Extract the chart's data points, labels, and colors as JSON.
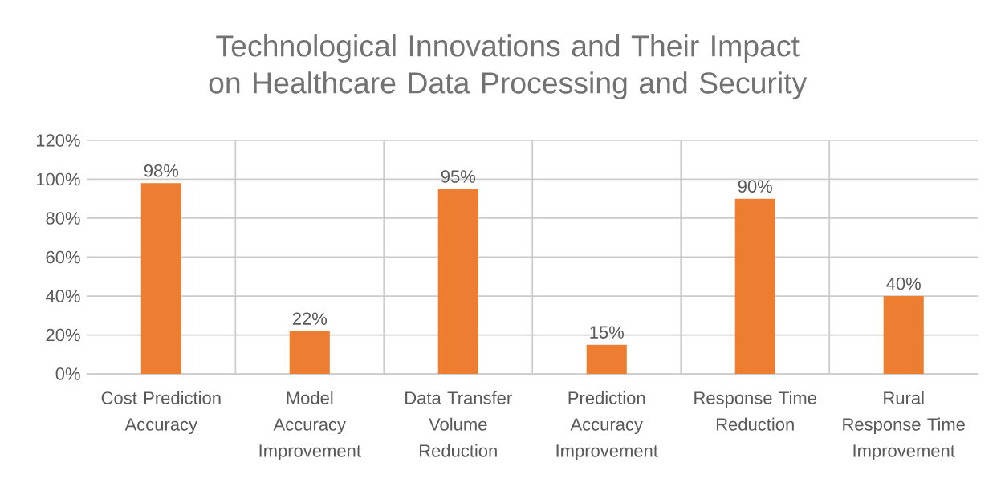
{
  "chart_data": {
    "type": "bar",
    "title": "Technological Innovations and Their Impact on Healthcare Data Processing and Security",
    "categories": [
      "Cost Prediction Accuracy",
      "Model Accuracy Improvement",
      "Data Transfer Volume Reduction",
      "Prediction Accuracy Improvement",
      "Response Time Reduction",
      "Rural Response Time Improvement"
    ],
    "values": [
      98,
      22,
      95,
      15,
      90,
      40
    ],
    "value_labels": [
      "98%",
      "22%",
      "95%",
      "15%",
      "90%",
      "40%"
    ],
    "color": "#ed7d31",
    "ylim": [
      0,
      120
    ],
    "yticks": [
      {
        "value": 0,
        "label": "0%"
      },
      {
        "value": 20,
        "label": "20%"
      },
      {
        "value": 40,
        "label": "40%"
      },
      {
        "value": 60,
        "label": "60%"
      },
      {
        "value": 80,
        "label": "80%"
      },
      {
        "value": 100,
        "label": "100%"
      },
      {
        "value": 120,
        "label": "120%"
      }
    ],
    "grid": true
  }
}
